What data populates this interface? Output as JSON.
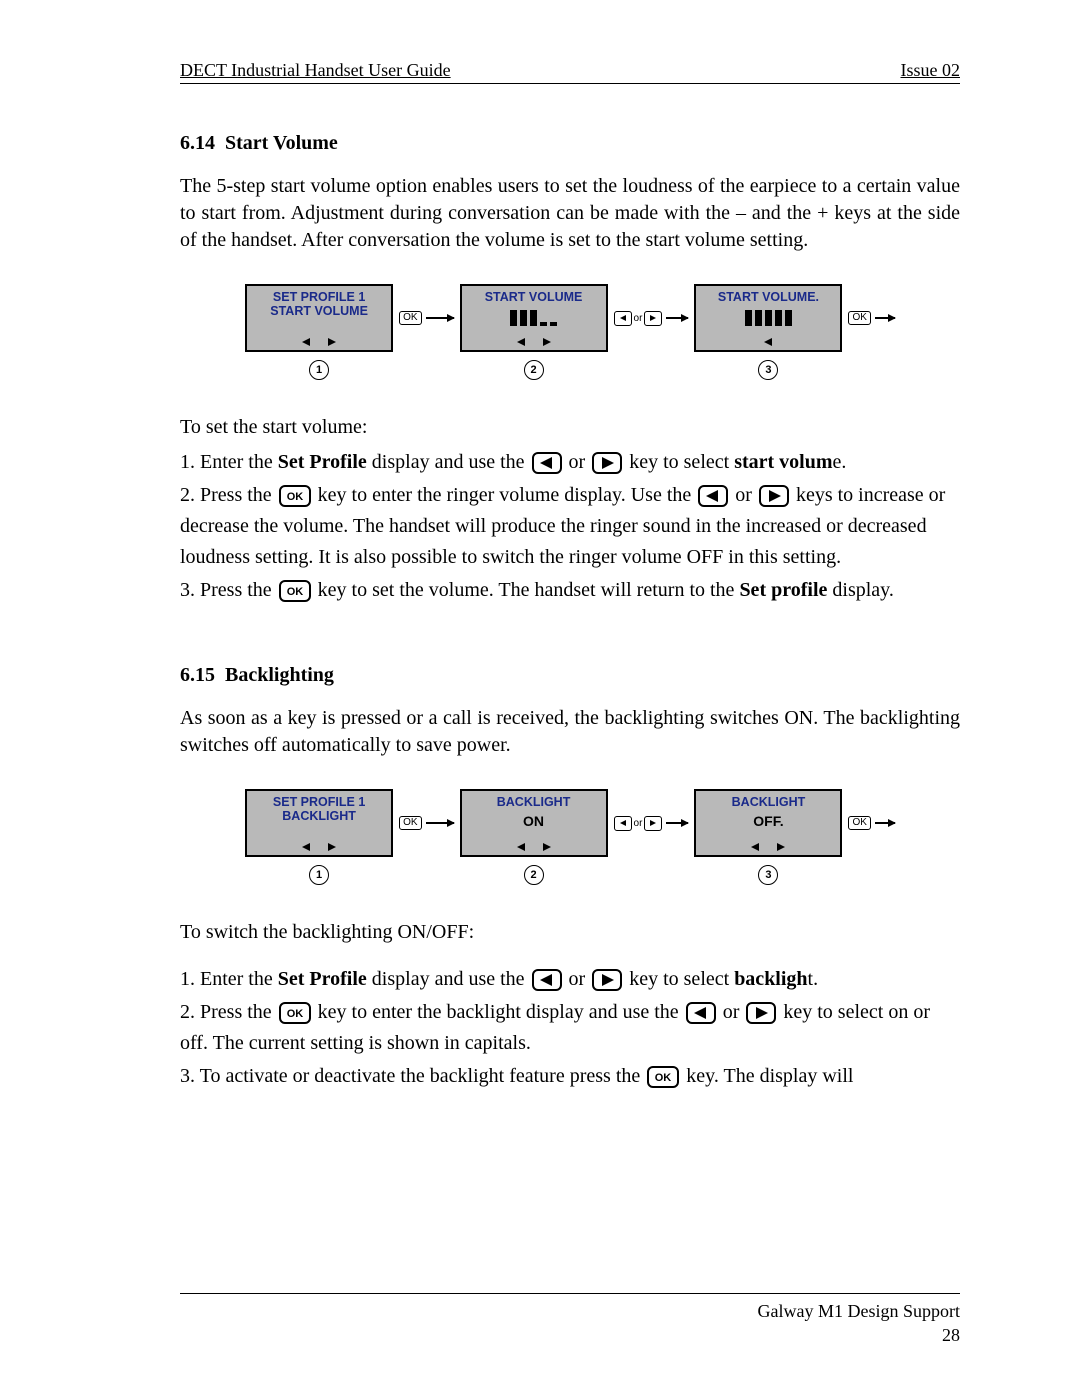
{
  "header": {
    "left": "DECT Industrial Handset User Guide",
    "right": "Issue 02"
  },
  "section1": {
    "number": "6.14",
    "title": "Start Volume",
    "intro": "The 5-step start volume option enables users to set the loudness of the earpiece to a certain value to start from. Adjustment during conversation can be made with the – and the + keys at the side of the handset. After conversation the volume is set to the start volume setting.",
    "flow": {
      "boxes": [
        {
          "lines": "SET PROFILE 1\nSTART VOLUME",
          "nav": "both"
        },
        {
          "lines": "START VOLUME",
          "bars": {
            "filled": 3,
            "empty": 2
          },
          "nav": "both"
        },
        {
          "lines": "START VOLUME.",
          "bars": {
            "filled": 5,
            "empty": 0
          },
          "nav": "left"
        }
      ],
      "connectors": [
        "ok",
        "lr",
        "ok-end"
      ]
    },
    "lead": "To set the start volume:",
    "steps": [
      {
        "pre": "1. Enter the ",
        "bold1": "Set Profile",
        "mid1": " display and use the ",
        "key1": "left",
        "or": " or ",
        "key2": "right",
        "mid2": " key to select ",
        "bold2": "start volum",
        "trail": "e."
      },
      {
        "pre": "2. Press the ",
        "key1": "ok",
        "mid1": " key to enter the ringer volume display. Use the ",
        "key2": "left",
        "or": " or ",
        "key3": "right",
        "mid2": " keys to increase or decrease the volume. The handset will produce the ringer sound in the increased or decreased loudness setting. It is also possible to switch the ringer volume OFF in this setting."
      },
      {
        "pre": "3. Press the ",
        "key1": "ok",
        "mid1": " key to set the volume. The handset will return to the ",
        "bold1": "Set profile",
        "trail": " display."
      }
    ]
  },
  "section2": {
    "number": "6.15",
    "title": "Backlighting",
    "intro": "As soon as a key is pressed or a call is received, the backlighting switches ON. The backlighting switches off automatically to save power.",
    "flow": {
      "boxes": [
        {
          "lines": "SET PROFILE 1\nBACKLIGHT",
          "nav": "both"
        },
        {
          "lines": "BACKLIGHT",
          "status": "ON",
          "nav": "both"
        },
        {
          "lines": "BACKLIGHT",
          "status": "OFF.",
          "nav": "both"
        }
      ],
      "connectors": [
        "ok",
        "lr",
        "ok-end"
      ]
    },
    "lead": "To switch the backlighting ON/OFF:",
    "steps": [
      {
        "pre": "1. Enter the ",
        "bold1": "Set Profile",
        "mid1": " display and use the ",
        "key1": "left",
        "or": " or ",
        "key2": "right",
        "mid2": " key to select ",
        "bold2": "backligh",
        "trail": "t."
      },
      {
        "pre": "2. Press the ",
        "key1": "ok",
        "mid1": " key to enter the backlight display and use the ",
        "key2": "left",
        "or": " or ",
        "key3": "right",
        "mid2": " key to select on or off. The current setting is shown in capitals."
      },
      {
        "pre": "3. To activate or deactivate the backlight feature press the ",
        "key1": "ok",
        "mid1": " key. The display will"
      }
    ]
  },
  "footer": {
    "line1": "Galway M1 Design Support",
    "line2": "28"
  },
  "labels": {
    "ok": "OK",
    "or": "or"
  },
  "colors": {
    "screen_bg": "#b9b9b9",
    "screen_title": "#1a2a8a"
  }
}
